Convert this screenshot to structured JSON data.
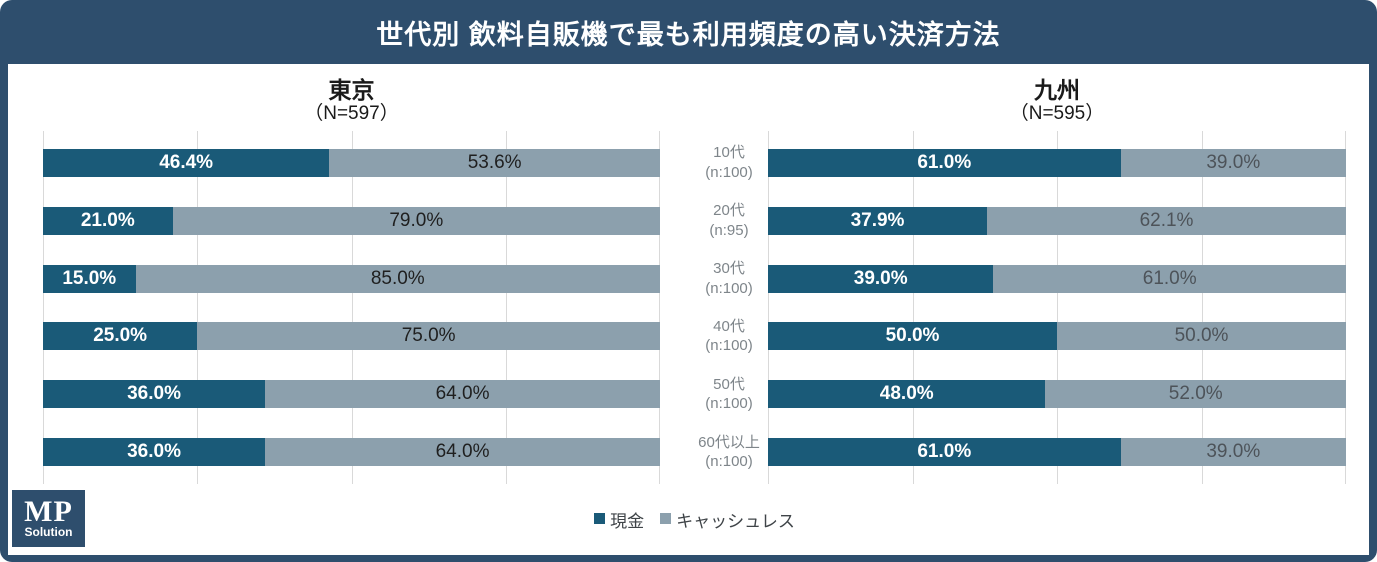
{
  "title": "世代別 飲料自販機で最も利用頻度の高い決済方法",
  "logo": {
    "line1": "MP",
    "line2": "Solution"
  },
  "colors": {
    "frame": "#2e4e6d",
    "cash": "#1a5a78",
    "cashless": "#8ca0ad",
    "gridline": "#d9d9d9"
  },
  "chart_data": {
    "type": "bar",
    "variant": "horizontal-stacked",
    "title": "世代別 飲料自販機で最も利用頻度の高い決済方法",
    "categories": [
      "10代 (n:100)",
      "20代 (n:95)",
      "30代 (n:100)",
      "40代 (n:100)",
      "50代 (n:100)",
      "60代以上 (n:100)"
    ],
    "charts": [
      {
        "name": "東京",
        "subtitle": "（N=597）",
        "series": [
          {
            "name": "現金",
            "values": [
              46.4,
              21.0,
              15.0,
              25.0,
              36.0,
              36.0
            ]
          },
          {
            "name": "キャッシュレス",
            "values": [
              53.6,
              79.0,
              85.0,
              75.0,
              64.0,
              64.0
            ]
          }
        ]
      },
      {
        "name": "九州",
        "subtitle": "（N=595）",
        "series": [
          {
            "name": "現金",
            "values": [
              61.0,
              37.9,
              39.0,
              50.0,
              48.0,
              61.0
            ]
          },
          {
            "name": "キャッシュレス",
            "values": [
              39.0,
              62.1,
              61.0,
              50.0,
              52.0,
              39.0
            ]
          }
        ]
      }
    ],
    "xlim": [
      0,
      100
    ],
    "grid": true,
    "gridline_step_pct": 25,
    "value_label_format": "0.0%",
    "legend_position": "bottom"
  }
}
